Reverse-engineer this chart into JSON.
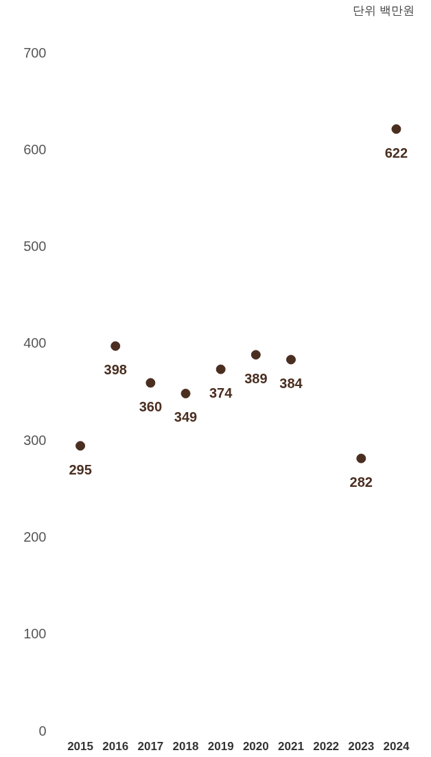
{
  "chart_data": {
    "type": "scatter",
    "annotations": [
      "단위 백만원"
    ],
    "categories": [
      "2015",
      "2016",
      "2017",
      "2018",
      "2019",
      "2020",
      "2021",
      "2022",
      "2023",
      "2024"
    ],
    "values": [
      295,
      398,
      360,
      349,
      374,
      389,
      384,
      null,
      282,
      622
    ],
    "color": "#4a2e20",
    "ylim": [
      0,
      700
    ],
    "yticks": [
      0,
      100,
      200,
      300,
      400,
      500,
      600,
      700
    ],
    "grid": false,
    "legend": false,
    "marker": "circle",
    "data_labels": true
  }
}
